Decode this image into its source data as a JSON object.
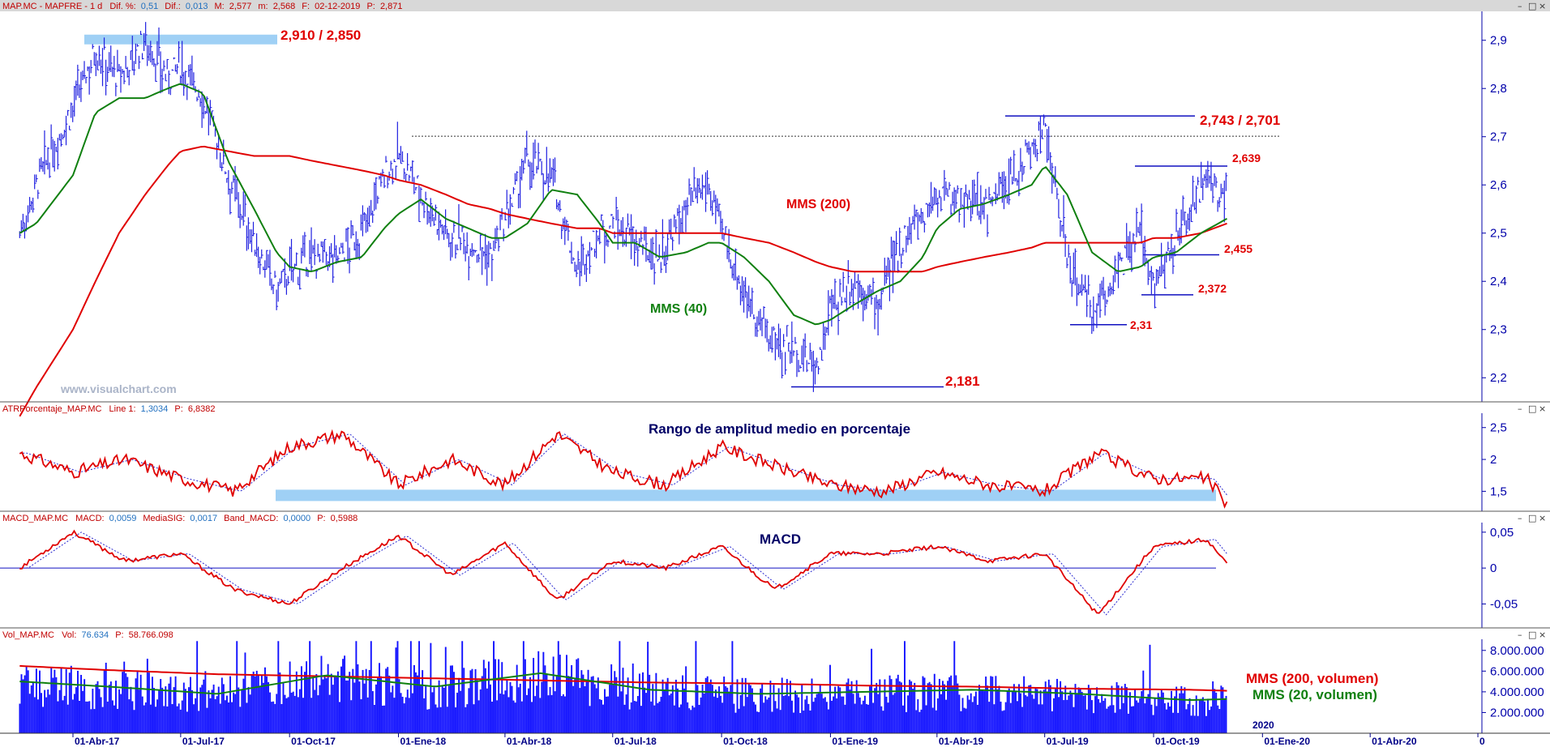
{
  "colors": {
    "price": "#2020e0",
    "mms200": "#e00000",
    "mms40": "#108010",
    "axis": "#0000aa",
    "header_text": "#c00000",
    "header_bg": "#d8d8d8",
    "band": "#9fd0f5",
    "hline": "#1010c0",
    "volume": "#1010ff"
  },
  "panels": {
    "price": {
      "header": {
        "name": "MAP.MC - MAPFRE - 1 d",
        "dif_label": "Dif. %:",
        "dif_value": "0,51",
        "difabs_label": "Dif.:",
        "difabs_value": "0,013",
        "max_label": "M:",
        "max_value": "2,577",
        "min_label": "m:",
        "min_value": "2,568",
        "date_label": "F:",
        "date_value": "02-12-2019",
        "p_label": "P:",
        "p_value": "2,871"
      },
      "yticks": [
        "2,9",
        "2,8",
        "2,7",
        "2,6",
        "2,5",
        "2,4",
        "2,3",
        "2,2"
      ],
      "annotations": {
        "res1": "2,910 / 2,850",
        "res2": "2,743 / 2,701",
        "level_2639": "2,639",
        "level_2455": "2,455",
        "level_2372": "2,372",
        "level_231": "2,31",
        "level_2181": "2,181",
        "mms200": "MMS (200)",
        "mms40": "MMS (40)",
        "watermark": "www.visualchart.com"
      }
    },
    "atr": {
      "header": {
        "name": "ATRPorcentaje_MAP.MC",
        "line_label": "Line 1:",
        "line_value": "1,3034",
        "p_label": "P:",
        "p_value": "6,8382"
      },
      "title": "Rango de amplitud medio en porcentaje",
      "yticks": [
        "2,5",
        "2",
        "1,5"
      ]
    },
    "macd": {
      "header": {
        "name": "MACD_MAP.MC",
        "macd_label": "MACD:",
        "macd_value": "0,0059",
        "sig_label": "MediaSIG:",
        "sig_value": "0,0017",
        "band_label": "Band_MACD:",
        "band_value": "0,0000",
        "p_label": "P:",
        "p_value": "0,5988"
      },
      "title": "MACD",
      "yticks": [
        "0,05",
        "0",
        "-0,05"
      ]
    },
    "volume": {
      "header": {
        "name": "Vol_MAP.MC",
        "vol_label": "Vol:",
        "vol_value": "76.634",
        "p_label": "P:",
        "p_value": "58.766.098"
      },
      "legend_red": "MMS (200, volumen)",
      "legend_green": "MMS (20, volumen)",
      "yticks": [
        "8.000.000",
        "6.000.000",
        "4.000.000",
        "2.000.000"
      ],
      "year_label": "2020"
    }
  },
  "xaxis": {
    "labels": [
      "01-Abr-17",
      "01-Jul-17",
      "01-Oct-17",
      "01-Ene-18",
      "01-Abr-18",
      "01-Jul-18",
      "01-Oct-18",
      "01-Ene-19",
      "01-Abr-19",
      "01-Jul-19",
      "01-Oct-19",
      "01-Ene-20",
      "01-Abr-20",
      "0"
    ]
  },
  "window_buttons": {
    "minimize": "–",
    "restore": "□",
    "close": "×"
  },
  "chart_data": [
    {
      "type": "line",
      "title": "MAP.MC - MAPFRE - 1 d",
      "x": [
        "2017-02-15",
        "2017-03-01",
        "2017-04-01",
        "2017-04-20",
        "2017-05-10",
        "2017-06-01",
        "2017-06-20",
        "2017-07-01",
        "2017-07-20",
        "2017-08-10",
        "2017-09-01",
        "2017-09-20",
        "2017-10-01",
        "2017-10-20",
        "2017-11-10",
        "2017-12-01",
        "2017-12-20",
        "2018-01-01",
        "2018-01-20",
        "2018-02-10",
        "2018-03-01",
        "2018-03-20",
        "2018-04-01",
        "2018-04-20",
        "2018-05-10",
        "2018-06-01",
        "2018-06-20",
        "2018-07-01",
        "2018-07-20",
        "2018-08-10",
        "2018-09-01",
        "2018-09-20",
        "2018-10-01",
        "2018-10-20",
        "2018-11-10",
        "2018-12-01",
        "2018-12-20",
        "2019-01-01",
        "2019-01-20",
        "2019-02-10",
        "2019-03-01",
        "2019-03-20",
        "2019-04-01",
        "2019-04-20",
        "2019-05-10",
        "2019-06-01",
        "2019-06-20",
        "2019-07-01",
        "2019-07-20",
        "2019-08-10",
        "2019-09-01",
        "2019-09-20",
        "2019-10-01",
        "2019-10-20",
        "2019-11-10",
        "2019-12-02"
      ],
      "series": [
        {
          "name": "",
          "values": [
            2.5,
            2.6,
            2.76,
            2.88,
            2.82,
            2.9,
            2.82,
            2.85,
            2.78,
            2.62,
            2.48,
            2.38,
            2.42,
            2.45,
            2.45,
            2.5,
            2.62,
            2.66,
            2.58,
            2.5,
            2.48,
            2.45,
            2.52,
            2.65,
            2.62,
            2.42,
            2.5,
            2.52,
            2.48,
            2.45,
            2.55,
            2.6,
            2.5,
            2.38,
            2.28,
            2.26,
            2.22,
            2.34,
            2.4,
            2.35,
            2.48,
            2.54,
            2.58,
            2.57,
            2.55,
            2.6,
            2.68,
            2.72,
            2.45,
            2.33,
            2.42,
            2.5,
            2.4,
            2.48,
            2.6,
            2.575
          ]
        },
        {
          "name": "MMS (40)",
          "values": [
            2.5,
            2.52,
            2.62,
            2.75,
            2.78,
            2.78,
            2.8,
            2.81,
            2.79,
            2.65,
            2.55,
            2.46,
            2.43,
            2.42,
            2.44,
            2.45,
            2.51,
            2.54,
            2.57,
            2.53,
            2.51,
            2.49,
            2.49,
            2.52,
            2.59,
            2.58,
            2.52,
            2.48,
            2.48,
            2.45,
            2.46,
            2.48,
            2.48,
            2.45,
            2.4,
            2.33,
            2.31,
            2.32,
            2.35,
            2.38,
            2.4,
            2.45,
            2.51,
            2.55,
            2.56,
            2.58,
            2.6,
            2.64,
            2.58,
            2.46,
            2.42,
            2.43,
            2.45,
            2.46,
            2.5,
            2.53
          ]
        },
        {
          "name": "MMS (200)",
          "values": [
            2.12,
            2.18,
            2.3,
            2.4,
            2.5,
            2.58,
            2.64,
            2.67,
            2.68,
            2.67,
            2.66,
            2.66,
            2.66,
            2.65,
            2.64,
            2.63,
            2.62,
            2.61,
            2.6,
            2.58,
            2.56,
            2.55,
            2.54,
            2.53,
            2.52,
            2.51,
            2.51,
            2.5,
            2.5,
            2.5,
            2.5,
            2.5,
            2.5,
            2.49,
            2.48,
            2.46,
            2.44,
            2.43,
            2.42,
            2.42,
            2.42,
            2.42,
            2.43,
            2.44,
            2.45,
            2.46,
            2.47,
            2.48,
            2.48,
            2.48,
            2.48,
            2.48,
            2.49,
            2.49,
            2.5,
            2.52
          ]
        }
      ],
      "ylim": [
        2.15,
        2.96
      ],
      "levels": [
        2.91,
        2.85,
        2.743,
        2.701,
        2.639,
        2.455,
        2.372,
        2.31,
        2.181
      ]
    },
    {
      "type": "line",
      "title": "Rango de amplitud medio en porcentaje",
      "x": [
        "2017-02-15",
        "2017-04-01",
        "2017-05-15",
        "2017-07-01",
        "2017-08-15",
        "2017-10-01",
        "2017-11-15",
        "2018-01-01",
        "2018-02-15",
        "2018-04-01",
        "2018-05-15",
        "2018-07-01",
        "2018-08-15",
        "2018-10-01",
        "2018-11-15",
        "2019-01-01",
        "2019-02-15",
        "2019-04-01",
        "2019-05-15",
        "2019-07-01",
        "2019-08-15",
        "2019-10-01",
        "2019-11-15",
        "2019-12-02"
      ],
      "series": [
        {
          "name": "",
          "values": [
            2.1,
            1.8,
            2.0,
            1.7,
            1.5,
            2.2,
            2.4,
            1.6,
            2.0,
            1.6,
            2.4,
            1.8,
            1.6,
            2.2,
            1.9,
            1.6,
            1.5,
            1.8,
            1.6,
            1.5,
            2.1,
            1.7,
            1.7,
            1.3
          ]
        }
      ],
      "ylim": [
        1.2,
        2.7
      ]
    },
    {
      "type": "line",
      "title": "MACD",
      "x": [
        "2017-02-15",
        "2017-04-01",
        "2017-05-15",
        "2017-07-01",
        "2017-08-15",
        "2017-10-01",
        "2017-11-15",
        "2018-01-01",
        "2018-02-15",
        "2018-04-01",
        "2018-05-15",
        "2018-07-01",
        "2018-08-15",
        "2018-10-01",
        "2018-11-15",
        "2019-01-01",
        "2019-02-15",
        "2019-04-01",
        "2019-05-15",
        "2019-07-01",
        "2019-08-15",
        "2019-10-01",
        "2019-11-15",
        "2019-12-02"
      ],
      "series": [
        {
          "name": "",
          "values": [
            0.0,
            0.05,
            0.01,
            0.02,
            -0.03,
            -0.05,
            0.0,
            0.045,
            -0.01,
            0.035,
            -0.045,
            0.01,
            0.0,
            0.03,
            -0.03,
            0.02,
            0.02,
            0.03,
            0.01,
            0.02,
            -0.065,
            0.03,
            0.04,
            0.0059
          ]
        }
      ],
      "ylim": [
        -0.08,
        0.06
      ]
    },
    {
      "type": "bar",
      "title": "",
      "x": [
        "2017-02-15",
        "2017-05-01",
        "2017-08-01",
        "2017-11-01",
        "2018-02-01",
        "2018-05-01",
        "2018-08-01",
        "2018-11-01",
        "2019-02-01",
        "2019-05-01",
        "2019-08-01",
        "2019-11-01",
        "2019-12-02"
      ],
      "series": [
        {
          "name": "MMS (200, volumen)",
          "values": [
            6500000,
            6100000,
            5700000,
            5500000,
            5300000,
            5100000,
            4900000,
            4800000,
            4600000,
            4500000,
            4300000,
            4200000,
            4100000
          ]
        },
        {
          "name": "MMS (20, volumen)",
          "values": [
            5000000,
            4500000,
            3800000,
            5600000,
            4500000,
            5800000,
            4200000,
            3800000,
            4000000,
            4200000,
            3800000,
            3200000,
            3300000
          ]
        }
      ],
      "ylim": [
        0,
        9000000
      ]
    }
  ]
}
